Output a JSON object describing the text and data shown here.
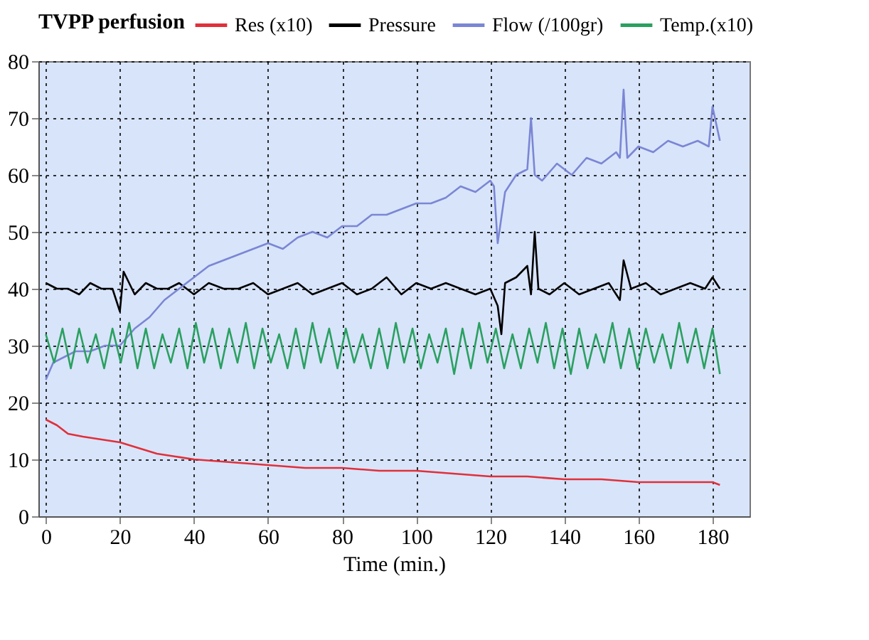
{
  "chart_data": {
    "type": "line",
    "legend_title": "TVPP perfusion",
    "xlabel": "Time (min.)",
    "xlim": [
      -2,
      190
    ],
    "ylim": [
      0,
      80
    ],
    "xticks": [
      0,
      20,
      40,
      60,
      80,
      100,
      120,
      140,
      160,
      180
    ],
    "yticks": [
      0,
      10,
      20,
      30,
      40,
      50,
      60,
      70,
      80
    ],
    "grid": true,
    "legend": "top",
    "line_style": "solid",
    "marker": "none",
    "series": [
      {
        "name": "Res (x10)",
        "color": "#e0303a",
        "x": [
          0,
          3,
          6,
          10,
          15,
          20,
          25,
          30,
          35,
          40,
          50,
          60,
          70,
          80,
          90,
          100,
          110,
          120,
          130,
          140,
          150,
          160,
          170,
          180,
          182
        ],
        "values": [
          17,
          16,
          14.5,
          14,
          13.5,
          13,
          12,
          11,
          10.5,
          10,
          9.5,
          9,
          8.5,
          8.5,
          8,
          8,
          7.5,
          7,
          7,
          6.5,
          6.5,
          6,
          6,
          6,
          5.5
        ]
      },
      {
        "name": "Pressure",
        "color": "#000000",
        "x": [
          0,
          3,
          6,
          9,
          12,
          15,
          18,
          20,
          21,
          24,
          27,
          30,
          33,
          36,
          40,
          44,
          48,
          52,
          56,
          60,
          64,
          68,
          72,
          76,
          80,
          84,
          88,
          92,
          96,
          100,
          104,
          108,
          112,
          116,
          120,
          122,
          123,
          124,
          127,
          130,
          131,
          132,
          133,
          136,
          140,
          144,
          148,
          152,
          155,
          156,
          158,
          162,
          166,
          170,
          174,
          178,
          180,
          182
        ],
        "values": [
          41,
          40,
          40,
          39,
          41,
          40,
          40,
          36,
          43,
          39,
          41,
          40,
          40,
          41,
          39,
          41,
          40,
          40,
          41,
          39,
          40,
          41,
          39,
          40,
          41,
          39,
          40,
          42,
          39,
          41,
          40,
          41,
          40,
          39,
          40,
          37,
          32,
          41,
          42,
          44,
          39,
          50,
          40,
          39,
          41,
          39,
          40,
          41,
          38,
          45,
          40,
          41,
          39,
          40,
          41,
          40,
          42,
          40
        ]
      },
      {
        "name": "Flow (/100gr)",
        "color": "#7b86d4",
        "x": [
          0,
          2,
          5,
          8,
          12,
          16,
          20,
          24,
          28,
          32,
          36,
          40,
          44,
          48,
          52,
          56,
          60,
          64,
          68,
          72,
          76,
          80,
          84,
          88,
          92,
          96,
          100,
          104,
          108,
          112,
          116,
          120,
          121,
          122,
          124,
          127,
          130,
          131,
          132,
          134,
          138,
          142,
          146,
          150,
          154,
          155,
          156,
          157,
          160,
          164,
          168,
          172,
          176,
          179,
          180,
          182
        ],
        "values": [
          24,
          27,
          28,
          29,
          29,
          30,
          30,
          33,
          35,
          38,
          40,
          42,
          44,
          45,
          46,
          47,
          48,
          47,
          49,
          50,
          49,
          51,
          51,
          53,
          53,
          54,
          55,
          55,
          56,
          58,
          57,
          59,
          58,
          48,
          57,
          60,
          61,
          70,
          60,
          59,
          62,
          60,
          63,
          62,
          64,
          63,
          75,
          63,
          65,
          64,
          66,
          65,
          66,
          65,
          72,
          66
        ]
      },
      {
        "name": "Temp.(x10)",
        "color": "#2aa060",
        "x": [
          0,
          2.25,
          4.5,
          6.75,
          9,
          11.25,
          13.5,
          15.75,
          18,
          20.25,
          22.5,
          24.75,
          27,
          29.25,
          31.5,
          33.75,
          36,
          38.25,
          40.5,
          42.75,
          45,
          47.25,
          49.5,
          51.75,
          54,
          56.25,
          58.5,
          60.75,
          63,
          65.25,
          67.5,
          69.75,
          72,
          74.25,
          76.5,
          78.75,
          81,
          83.25,
          85.5,
          87.75,
          90,
          92.25,
          94.5,
          96.75,
          99,
          101.25,
          103.5,
          105.75,
          108,
          110.25,
          112.5,
          114.75,
          117,
          119.25,
          121.5,
          123.75,
          126,
          128.25,
          130.5,
          132.75,
          135,
          137.25,
          139.5,
          141.75,
          144,
          146.25,
          148.5,
          150.75,
          153,
          155.25,
          157.5,
          159.75,
          162,
          164.25,
          166.5,
          168.75,
          171,
          173.25,
          175.5,
          177.75,
          180,
          182
        ],
        "values": [
          32,
          27,
          33,
          26,
          33,
          27,
          32,
          26,
          33,
          27,
          34,
          26,
          33,
          26,
          32,
          27,
          33,
          26,
          34,
          27,
          33,
          26,
          33,
          27,
          34,
          26,
          33,
          27,
          32,
          26,
          33,
          26,
          34,
          27,
          33,
          26,
          33,
          27,
          32,
          26,
          33,
          26,
          34,
          27,
          33,
          26,
          32,
          27,
          33,
          25,
          33,
          26,
          34,
          27,
          33,
          26,
          32,
          26,
          33,
          27,
          34,
          26,
          33,
          25,
          33,
          26,
          32,
          27,
          34,
          26,
          33,
          26,
          33,
          27,
          32,
          26,
          34,
          27,
          33,
          26,
          33,
          25
        ]
      }
    ]
  }
}
